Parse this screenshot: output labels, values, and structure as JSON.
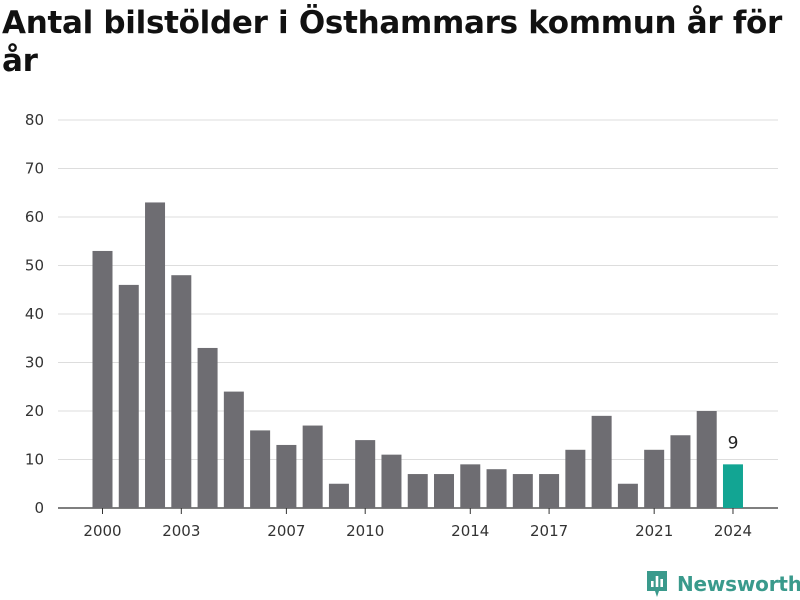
{
  "chart_data": {
    "type": "bar",
    "title": "Antal bilstölder i Östhammars kommun år för år",
    "categories": [
      "2000",
      "2001",
      "2002",
      "2003",
      "2004",
      "2005",
      "2006",
      "2007",
      "2008",
      "2009",
      "2010",
      "2011",
      "2012",
      "2013",
      "2014",
      "2015",
      "2016",
      "2017",
      "2018",
      "2019",
      "2020",
      "2021",
      "2022",
      "2023",
      "2024"
    ],
    "values": [
      53,
      46,
      63,
      48,
      33,
      24,
      16,
      13,
      17,
      5,
      14,
      11,
      7,
      7,
      9,
      8,
      7,
      7,
      12,
      19,
      5,
      12,
      15,
      20,
      9
    ],
    "x_tick_labels": [
      "2000",
      "2003",
      "2007",
      "2010",
      "2014",
      "2017",
      "2021",
      "2024"
    ],
    "y_ticks": [
      0,
      10,
      20,
      30,
      40,
      50,
      60,
      70,
      80
    ],
    "ylim": [
      0,
      80
    ],
    "grid": true,
    "bar_color": "#6e6d72",
    "highlight_color": "#12a593",
    "highlight_index": 24,
    "highlight_label": "9"
  },
  "brand": {
    "name": "Newsworthy",
    "icon": "bar-chart-logo-icon",
    "color": "#3a9a8c"
  }
}
